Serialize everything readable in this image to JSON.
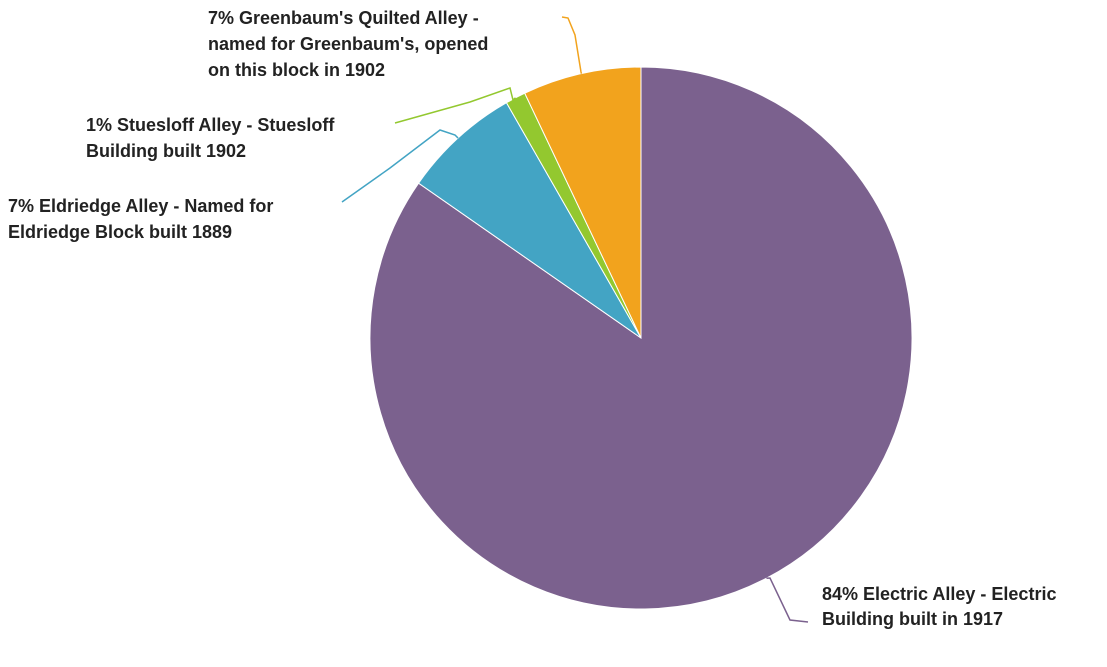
{
  "chart_data": {
    "type": "pie",
    "title": "",
    "start_angle_deg": 0,
    "direction": "clockwise",
    "legend": "none",
    "slices": [
      {
        "label": "Electric Alley - Electric Building built in 1917",
        "value": 84,
        "percent_label": "84%",
        "label_lines": [
          "84% Electric Alley - Electric",
          "Building built in 1917"
        ],
        "color": "#7b618e"
      },
      {
        "label": "Eldriedge Alley - Named for Eldriedge Block built 1889",
        "value": 7,
        "percent_label": "7%",
        "label_lines": [
          "7% Eldriedge Alley - Named for",
          "Eldriedge Block built 1889"
        ],
        "color": "#43a4c4"
      },
      {
        "label": "Stuesloff Alley - Stuesloff Building built 1902",
        "value": 1.2,
        "percent_label": "1%",
        "label_lines": [
          "1% Stuesloff Alley - Stuesloff",
          "Building built 1902"
        ],
        "color": "#93c82f"
      },
      {
        "label": "Greenbaum's Quilted Alley - named for Greenbaum's, opened on this block in 1902",
        "value": 7,
        "percent_label": "7%",
        "label_lines": [
          "7% Greenbaum's Quilted Alley -",
          "named for Greenbaum's, opened",
          "on this block in 1902"
        ],
        "color": "#f2a31d"
      }
    ]
  }
}
